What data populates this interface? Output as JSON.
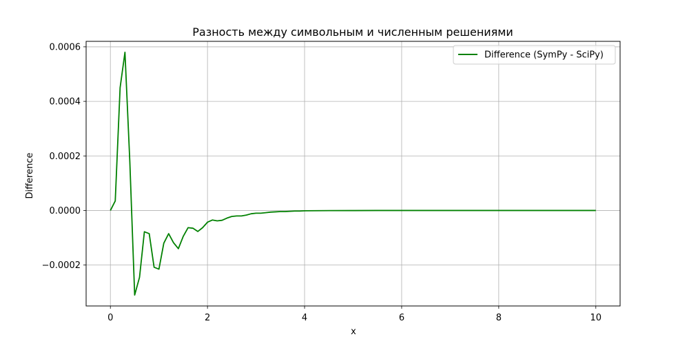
{
  "chart_data": {
    "type": "line",
    "title": "Разность между символьным и численным решениями",
    "xlabel": "x",
    "ylabel": "Difference",
    "xlim": [
      -0.5,
      10.5
    ],
    "ylim": [
      -0.00035,
      0.00062
    ],
    "xticks": [
      0,
      2,
      4,
      6,
      8,
      10
    ],
    "xtick_labels": [
      "0",
      "2",
      "4",
      "6",
      "8",
      "10"
    ],
    "yticks": [
      -0.0002,
      0.0,
      0.0002,
      0.0004,
      0.0006
    ],
    "ytick_labels": [
      "−0.0002",
      "0.0000",
      "0.0002",
      "0.0004",
      "0.0006"
    ],
    "grid": true,
    "legend_position": "top-right",
    "series": [
      {
        "name": "Difference (SymPy - SciPy)",
        "color": "#008000",
        "x": [
          0.0,
          0.1,
          0.2,
          0.3,
          0.4,
          0.5,
          0.6,
          0.7,
          0.8,
          0.9,
          1.0,
          1.1,
          1.2,
          1.3,
          1.4,
          1.5,
          1.6,
          1.7,
          1.8,
          1.9,
          2.0,
          2.1,
          2.2,
          2.3,
          2.4,
          2.5,
          2.6,
          2.7,
          2.8,
          2.9,
          3.0,
          3.1,
          3.2,
          3.3,
          3.4,
          3.5,
          3.6,
          3.7,
          3.8,
          3.9,
          4.0,
          4.5,
          5.0,
          5.5,
          6.0,
          6.5,
          7.0,
          7.5,
          8.0,
          8.5,
          9.0,
          9.5,
          10.0
        ],
        "y": [
          0.0,
          3.5e-05,
          0.00045,
          0.00058,
          0.00018,
          -0.00031,
          -0.000245,
          -7.8e-05,
          -8.5e-05,
          -0.000208,
          -0.000215,
          -0.00012,
          -8.5e-05,
          -0.000118,
          -0.00014,
          -9.5e-05,
          -6.3e-05,
          -6.5e-05,
          -7.7e-05,
          -6.3e-05,
          -4.3e-05,
          -3.5e-05,
          -3.8e-05,
          -3.6e-05,
          -2.8e-05,
          -2.2e-05,
          -2e-05,
          -2e-05,
          -1.7e-05,
          -1.2e-05,
          -1e-05,
          -1e-05,
          -8e-06,
          -6e-06,
          -5e-06,
          -4e-06,
          -4e-06,
          -3e-06,
          -2e-06,
          -2e-06,
          -1e-06,
          -5e-07,
          -3e-07,
          0.0,
          0.0,
          0.0,
          0.0,
          0.0,
          0.0,
          0.0,
          0.0,
          0.0,
          0.0
        ]
      }
    ]
  }
}
